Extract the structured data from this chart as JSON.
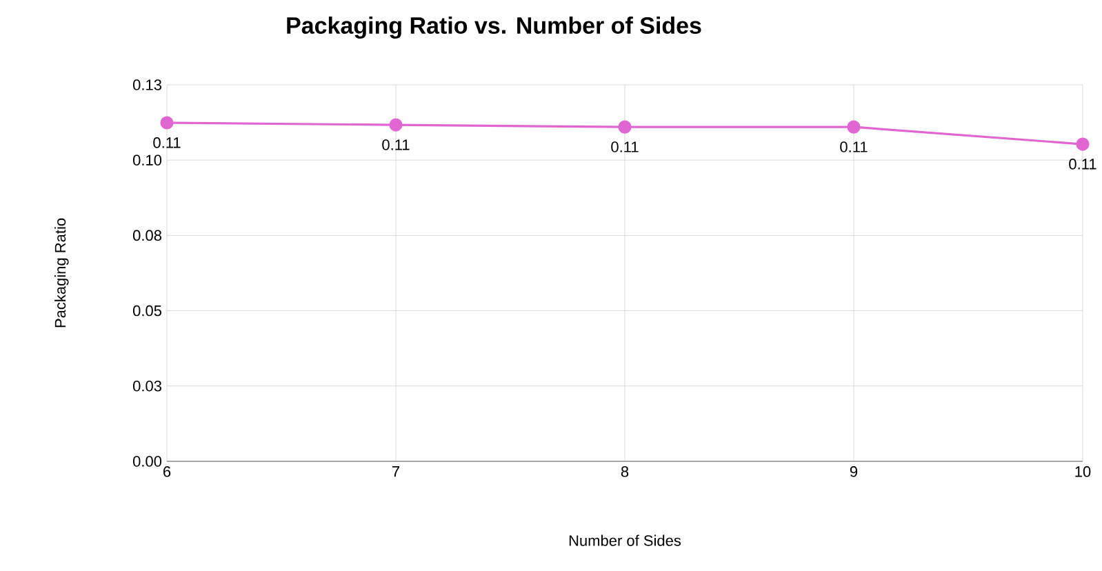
{
  "chart_data": {
    "type": "line",
    "title": "Packaging Ratio vs. Number of Sides",
    "xlabel": "Number of Sides",
    "ylabel": "Packaging Ratio",
    "x": [
      6,
      7,
      8,
      9,
      10
    ],
    "series": [
      {
        "color": "#e066d2",
        "values": [
          0.1124,
          0.1117,
          0.111,
          0.111,
          0.1053
        ],
        "value_labels": [
          "0.11",
          "0.11",
          "0.11",
          "0.11",
          "0.11"
        ]
      }
    ],
    "xlim": [
      6,
      10
    ],
    "xticks": [
      6,
      7,
      8,
      9,
      10
    ],
    "ylim": [
      0,
      0.125
    ],
    "yticks": [
      {
        "value": 0,
        "label": "0.00"
      },
      {
        "value": 0.025,
        "label": "0.03"
      },
      {
        "value": 0.05,
        "label": "0.05"
      },
      {
        "value": 0.075,
        "label": "0.08"
      },
      {
        "value": 0.1,
        "label": "0.10"
      },
      {
        "value": 0.125,
        "label": "0.13"
      }
    ],
    "grid": true,
    "marker": "circle",
    "line_style": "solid"
  }
}
